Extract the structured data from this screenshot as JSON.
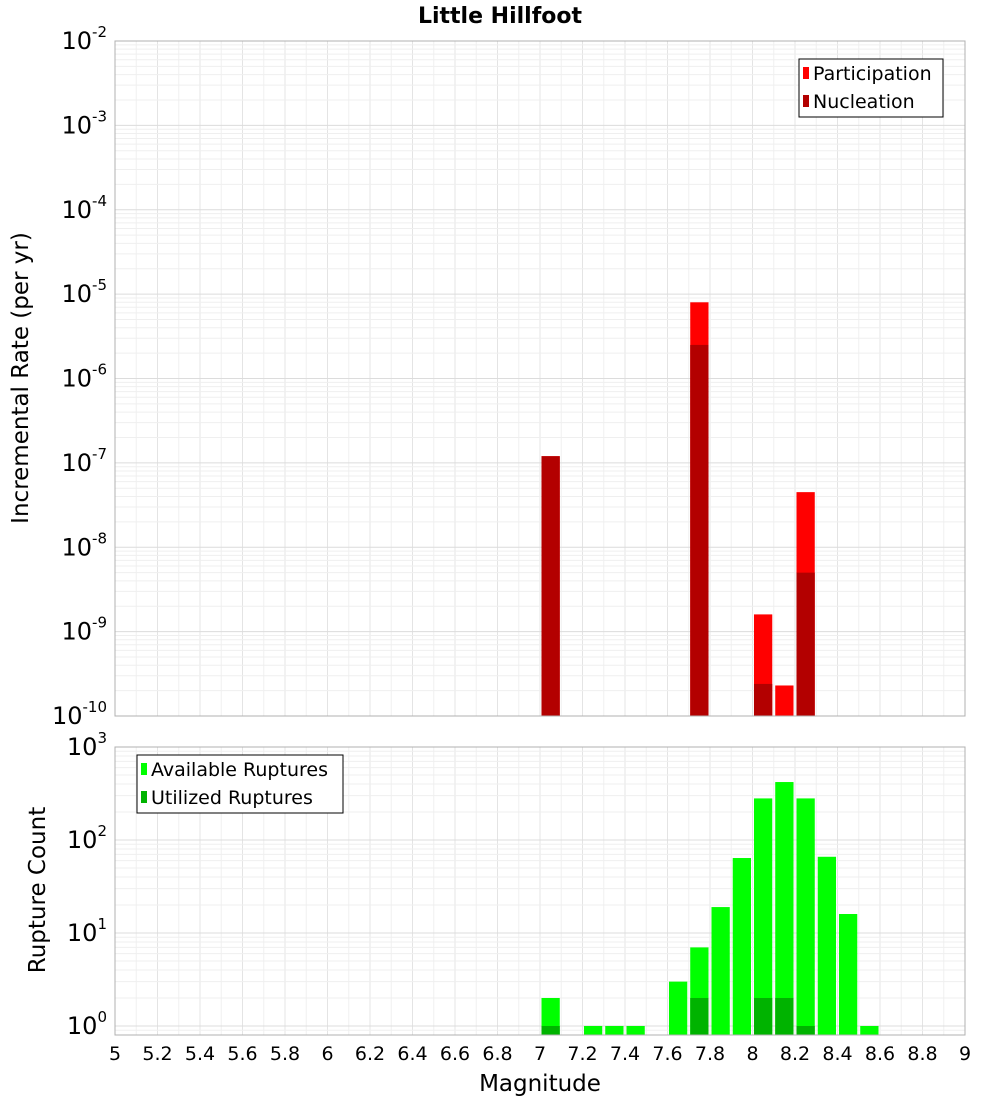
{
  "chart_data": [
    {
      "type": "bar",
      "title": "Little Hillfoot",
      "xlabel": "Magnitude",
      "ylabel": "Incremental Rate (per yr)",
      "y_scale": "log",
      "ylim": [
        1e-10,
        0.01
      ],
      "xlim": [
        5,
        9
      ],
      "y_ticks": [
        {
          "base": "10",
          "exp": "-10"
        },
        {
          "base": "10",
          "exp": "-9"
        },
        {
          "base": "10",
          "exp": "-8"
        },
        {
          "base": "10",
          "exp": "-7"
        },
        {
          "base": "10",
          "exp": "-6"
        },
        {
          "base": "10",
          "exp": "-5"
        },
        {
          "base": "10",
          "exp": "-4"
        },
        {
          "base": "10",
          "exp": "-3"
        },
        {
          "base": "10",
          "exp": "-2"
        }
      ],
      "grid": true,
      "legend_position": "top-right",
      "series": [
        {
          "name": "Participation",
          "color": "#ff0000",
          "points": [
            {
              "x": 7.05,
              "y": 1.2e-07
            },
            {
              "x": 7.75,
              "y": 8e-06
            },
            {
              "x": 8.05,
              "y": 1.6e-09
            },
            {
              "x": 8.15,
              "y": 2.3e-10
            },
            {
              "x": 8.25,
              "y": 4.5e-08
            }
          ]
        },
        {
          "name": "Nucleation",
          "color": "#b30000",
          "points": [
            {
              "x": 7.05,
              "y": 1.2e-07
            },
            {
              "x": 7.75,
              "y": 2.5e-06
            },
            {
              "x": 8.05,
              "y": 2.4e-10
            },
            {
              "x": 8.25,
              "y": 5e-09
            }
          ]
        }
      ]
    },
    {
      "type": "bar",
      "title": "",
      "xlabel": "Magnitude",
      "ylabel": "Rupture Count",
      "y_scale": "log",
      "ylim": [
        0.8,
        1000
      ],
      "xlim": [
        5,
        9
      ],
      "y_ticks": [
        {
          "base": "10",
          "exp": "0"
        },
        {
          "base": "10",
          "exp": "1"
        },
        {
          "base": "10",
          "exp": "2"
        },
        {
          "base": "10",
          "exp": "3"
        }
      ],
      "x_ticks": [
        "5",
        "5.2",
        "5.4",
        "5.6",
        "5.8",
        "6",
        "6.2",
        "6.4",
        "6.6",
        "6.8",
        "7",
        "7.2",
        "7.4",
        "7.6",
        "7.8",
        "8",
        "8.2",
        "8.4",
        "8.6",
        "8.8",
        "9"
      ],
      "grid": true,
      "legend_position": "top-left",
      "series": [
        {
          "name": "Available Ruptures",
          "color": "#00ff00",
          "points": [
            {
              "x": 7.05,
              "y": 2
            },
            {
              "x": 7.25,
              "y": 1
            },
            {
              "x": 7.35,
              "y": 1
            },
            {
              "x": 7.45,
              "y": 1
            },
            {
              "x": 7.65,
              "y": 3
            },
            {
              "x": 7.75,
              "y": 7
            },
            {
              "x": 7.85,
              "y": 19
            },
            {
              "x": 7.95,
              "y": 64
            },
            {
              "x": 8.05,
              "y": 280
            },
            {
              "x": 8.15,
              "y": 420
            },
            {
              "x": 8.25,
              "y": 280
            },
            {
              "x": 8.35,
              "y": 66
            },
            {
              "x": 8.45,
              "y": 16
            },
            {
              "x": 8.55,
              "y": 1
            }
          ]
        },
        {
          "name": "Utilized Ruptures",
          "color": "#00b300",
          "points": [
            {
              "x": 7.05,
              "y": 1
            },
            {
              "x": 7.75,
              "y": 2
            },
            {
              "x": 8.05,
              "y": 2
            },
            {
              "x": 8.15,
              "y": 2
            },
            {
              "x": 8.25,
              "y": 1
            }
          ]
        }
      ]
    }
  ]
}
